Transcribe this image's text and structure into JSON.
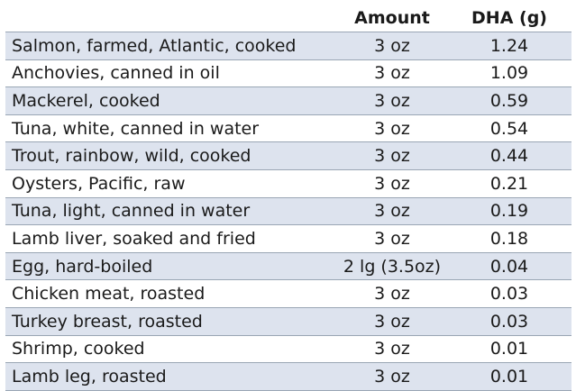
{
  "header": {
    "food": "",
    "amount": "Amount",
    "dha": "DHA (g)"
  },
  "rows": [
    {
      "food": "Salmon, farmed, Atlantic, cooked",
      "amount": "3 oz",
      "dha": "1.24"
    },
    {
      "food": "Anchovies, canned in oil",
      "amount": "3 oz",
      "dha": "1.09"
    },
    {
      "food": "Mackerel, cooked",
      "amount": "3 oz",
      "dha": "0.59"
    },
    {
      "food": "Tuna, white, canned in water",
      "amount": "3 oz",
      "dha": "0.54"
    },
    {
      "food": "Trout, rainbow, wild, cooked",
      "amount": "3 oz",
      "dha": "0.44"
    },
    {
      "food": "Oysters, Pacific, raw",
      "amount": "3 oz",
      "dha": "0.21"
    },
    {
      "food": "Tuna, light, canned in water",
      "amount": "3 oz",
      "dha": "0.19"
    },
    {
      "food": "Lamb liver, soaked and fried",
      "amount": "3 oz",
      "dha": "0.18"
    },
    {
      "food": "Egg, hard-boiled",
      "amount": "2 lg (3.5oz)",
      "dha": "0.04"
    },
    {
      "food": "Chicken meat, roasted",
      "amount": "3 oz",
      "dha": "0.03"
    },
    {
      "food": "Turkey breast, roasted",
      "amount": "3 oz",
      "dha": "0.03"
    },
    {
      "food": "Shrimp, cooked",
      "amount": "3 oz",
      "dha": "0.01"
    },
    {
      "food": "Lamb leg, roasted",
      "amount": "3 oz",
      "dha": "0.01"
    }
  ],
  "colors": {
    "row_shade": "#dde3ee",
    "row_plain": "#ffffff",
    "row_border": "#9aa6b4"
  }
}
